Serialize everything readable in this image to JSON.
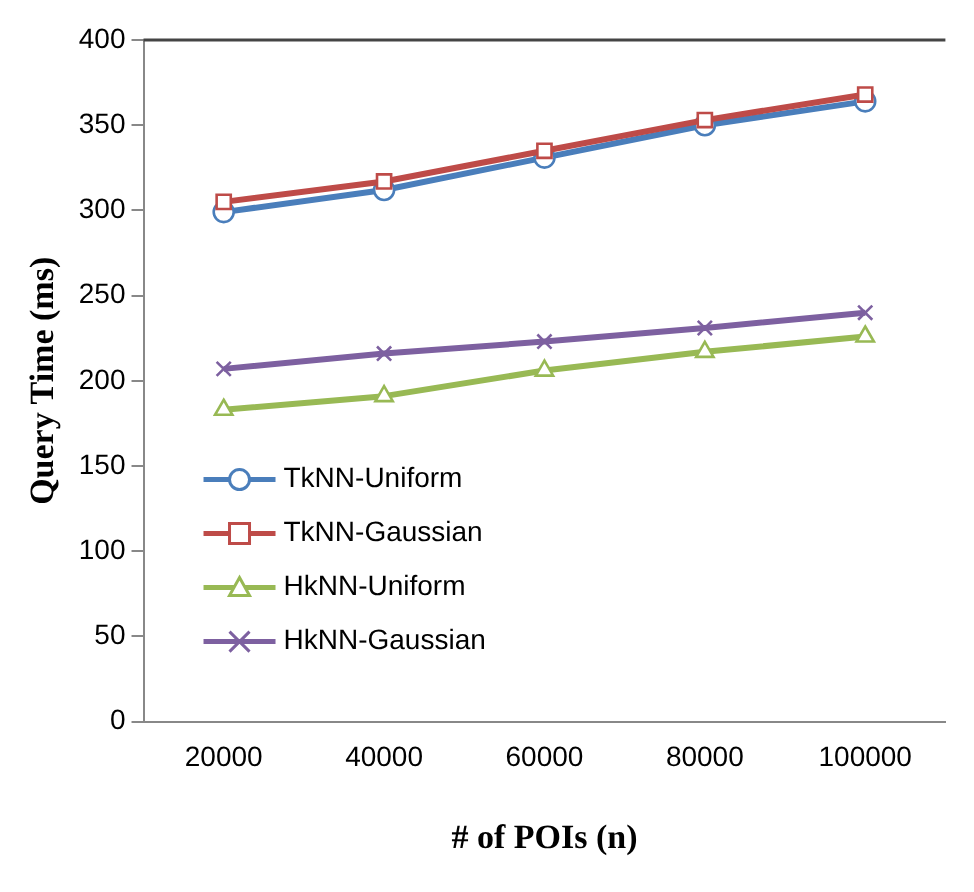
{
  "chart_data": {
    "type": "line",
    "xlabel": "# of POIs (n)",
    "ylabel": "Query Time (ms)",
    "categories": [
      "20000",
      "40000",
      "60000",
      "80000",
      "100000"
    ],
    "series": [
      {
        "name": "TkNN-Uniform",
        "color": "#4a7ebb",
        "marker": "circle",
        "values": [
          299,
          312,
          331,
          350,
          364
        ]
      },
      {
        "name": "TkNN-Gaussian",
        "color": "#be4b48",
        "marker": "square",
        "values": [
          305,
          317,
          335,
          353,
          368
        ]
      },
      {
        "name": "HkNN-Uniform",
        "color": "#98b954",
        "marker": "triangle",
        "values": [
          183,
          191,
          206,
          217,
          226
        ]
      },
      {
        "name": "HkNN-Gaussian",
        "color": "#7d60a0",
        "marker": "cross",
        "values": [
          207,
          216,
          223,
          231,
          240
        ]
      }
    ],
    "ylim": [
      0,
      400
    ],
    "yticks": [
      0,
      50,
      100,
      150,
      200,
      250,
      300,
      350,
      400
    ],
    "grid": false,
    "legend": "bottom left"
  }
}
